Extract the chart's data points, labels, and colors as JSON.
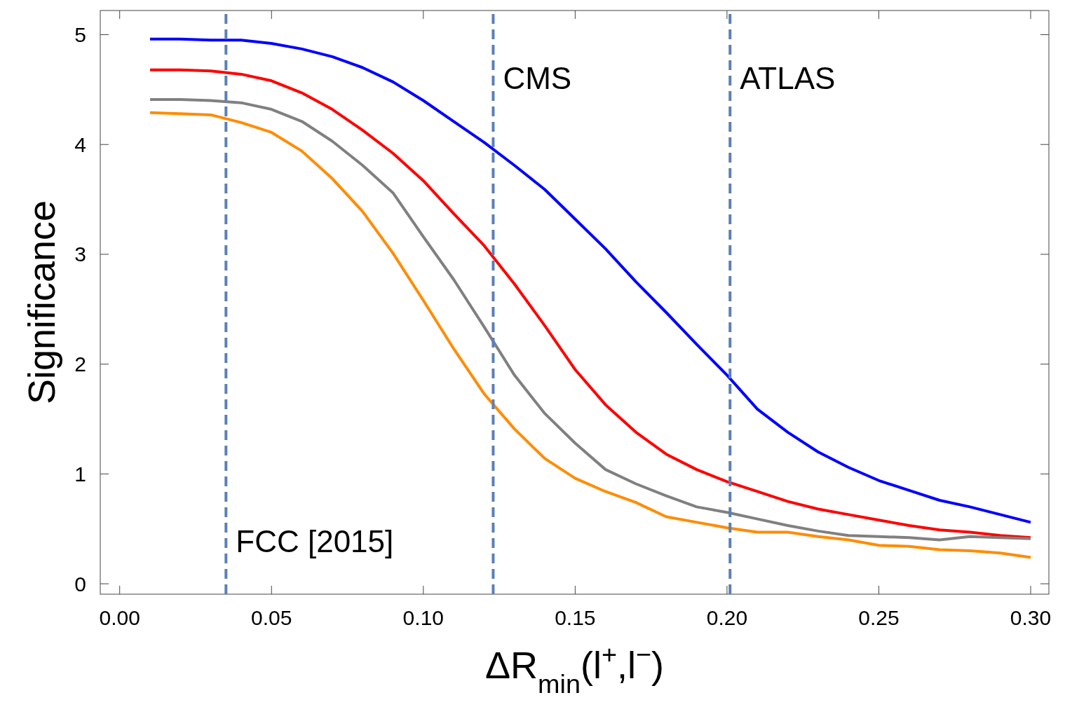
{
  "chart_data": {
    "type": "line",
    "ylabel": "Significance",
    "xlabel": "ΔR$_{min}$(l$^{+}$,l$^{−}$)",
    "x": [
      0.01,
      0.02,
      0.03,
      0.04,
      0.05,
      0.06,
      0.07,
      0.08,
      0.09,
      0.1,
      0.11,
      0.12,
      0.13,
      0.14,
      0.15,
      0.16,
      0.17,
      0.18,
      0.19,
      0.2,
      0.21,
      0.22,
      0.23,
      0.24,
      0.25,
      0.26,
      0.27,
      0.28,
      0.29,
      0.3
    ],
    "xlim": [
      -0.0064,
      0.306
    ],
    "ylim": [
      -0.095,
      5.22
    ],
    "xticks": [
      {
        "value": 0,
        "label": "0.00"
      },
      {
        "value": 0.05,
        "label": "0.05"
      },
      {
        "value": 0.1,
        "label": "0.10"
      },
      {
        "value": 0.15,
        "label": "0.15"
      },
      {
        "value": 0.2,
        "label": "0.20"
      },
      {
        "value": 0.25,
        "label": "0.25"
      },
      {
        "value": 0.3,
        "label": "0.30"
      }
    ],
    "yticks": [
      0,
      1,
      2,
      3,
      4,
      5
    ],
    "grid": false,
    "marker": "none",
    "line_style": "solid",
    "series": [
      {
        "color": "#0000ff",
        "values": [
          4.96,
          4.96,
          4.95,
          4.95,
          4.92,
          4.87,
          4.8,
          4.7,
          4.57,
          4.4,
          4.21,
          4.02,
          3.81,
          3.59,
          3.32,
          3.05,
          2.75,
          2.47,
          2.18,
          1.9,
          1.59,
          1.38,
          1.2,
          1.06,
          0.94,
          0.85,
          0.76,
          0.7,
          0.63,
          0.56
        ]
      },
      {
        "color": "#ff0000",
        "values": [
          4.68,
          4.68,
          4.67,
          4.64,
          4.58,
          4.47,
          4.32,
          4.13,
          3.92,
          3.67,
          3.37,
          3.08,
          2.73,
          2.35,
          1.95,
          1.63,
          1.38,
          1.18,
          1.04,
          0.93,
          0.84,
          0.75,
          0.68,
          0.63,
          0.58,
          0.53,
          0.49,
          0.47,
          0.44,
          0.42
        ]
      },
      {
        "color": "#808080",
        "values": [
          4.41,
          4.41,
          4.4,
          4.38,
          4.32,
          4.21,
          4.03,
          3.81,
          3.56,
          3.16,
          2.77,
          2.34,
          1.9,
          1.55,
          1.28,
          1.04,
          0.91,
          0.8,
          0.7,
          0.65,
          0.59,
          0.53,
          0.48,
          0.44,
          0.43,
          0.42,
          0.4,
          0.43,
          0.42,
          0.41
        ]
      },
      {
        "color": "#ff8c00",
        "values": [
          4.29,
          4.28,
          4.27,
          4.2,
          4.11,
          3.94,
          3.69,
          3.39,
          3.01,
          2.58,
          2.14,
          1.73,
          1.41,
          1.14,
          0.96,
          0.84,
          0.74,
          0.61,
          0.56,
          0.51,
          0.47,
          0.47,
          0.43,
          0.4,
          0.35,
          0.34,
          0.31,
          0.3,
          0.28,
          0.24
        ]
      }
    ],
    "ref_lines": [
      {
        "axis": "x",
        "value": 0.035,
        "color": "#5b7fb8",
        "line_style": "dashed",
        "label": "FCC [2015]"
      },
      {
        "axis": "x",
        "value": 0.123,
        "color": "#5b7fb8",
        "line_style": "dashed",
        "label": "CMS"
      },
      {
        "axis": "x",
        "value": 0.201,
        "color": "#5b7fb8",
        "line_style": "dashed",
        "label": "ATLAS"
      }
    ]
  }
}
